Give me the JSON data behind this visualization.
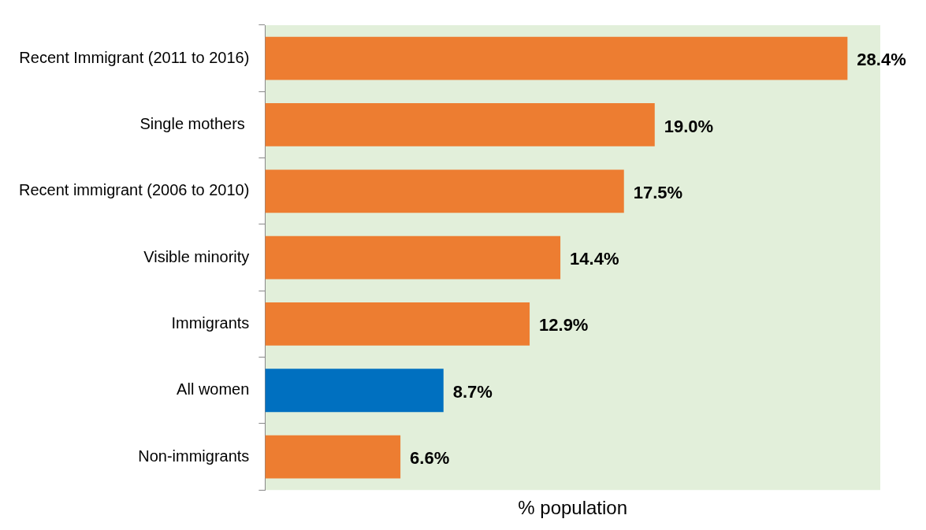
{
  "chart_data": {
    "type": "bar",
    "orientation": "horizontal",
    "xlabel": "% population",
    "categories": [
      "Recent Immigrant (2011 to 2016)",
      "Single mothers ",
      "Recent immigrant (2006 to 2010)",
      "Visible minority",
      "Immigrants",
      "All women",
      "Non-immigrants"
    ],
    "values": [
      28.4,
      19.0,
      17.5,
      14.4,
      12.9,
      8.7,
      6.6
    ],
    "colors": [
      "#ed7d31",
      "#ed7d31",
      "#ed7d31",
      "#ed7d31",
      "#ed7d31",
      "#0070c0",
      "#ed7d31"
    ],
    "value_labels": [
      "28.4%",
      "19.0%",
      "17.5%",
      "14.4%",
      "12.9%",
      "8.7%",
      "6.6%"
    ],
    "xlim": [
      0,
      30
    ],
    "tick_labels": "y",
    "grid": false,
    "legend": false
  }
}
